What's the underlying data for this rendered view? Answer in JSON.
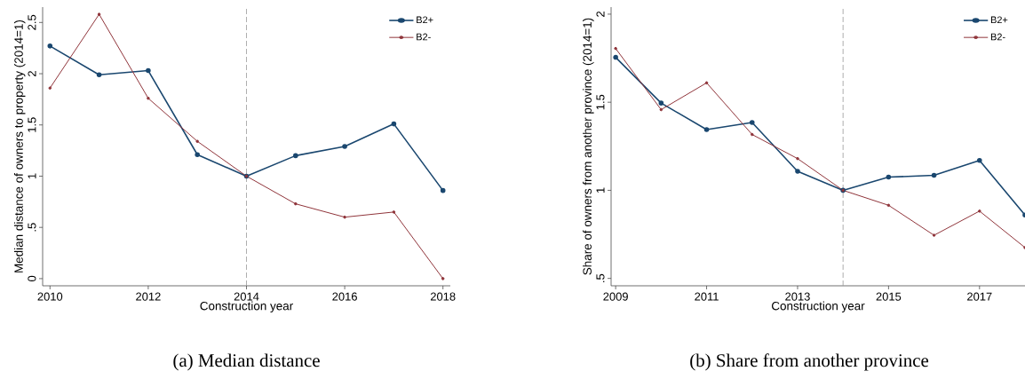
{
  "chart_data": [
    {
      "type": "line",
      "xlabel": "Construction year",
      "ylabel": "Median distance of owners to property (2014=1)",
      "x": [
        2010,
        2011,
        2012,
        2013,
        2014,
        2015,
        2016,
        2017,
        2018
      ],
      "series": [
        {
          "name": "B2+",
          "color": "#1a476f",
          "values": [
            2.27,
            1.99,
            2.03,
            1.21,
            1.0,
            1.2,
            1.29,
            1.51,
            0.86
          ]
        },
        {
          "name": "B2-",
          "color": "#90353b",
          "values": [
            1.86,
            2.58,
            1.76,
            1.34,
            1.0,
            0.73,
            0.6,
            0.65,
            0.0
          ]
        }
      ],
      "xlim": [
        2009.85,
        2018.15
      ],
      "ylim": [
        -0.07,
        2.65
      ],
      "xticks": [
        2010,
        2012,
        2014,
        2016,
        2018
      ],
      "yticks": [
        0,
        {
          "value": 0.5,
          "label": ".5"
        },
        1,
        {
          "value": 1.5,
          "label": "1.5"
        },
        2,
        {
          "value": 2.5,
          "label": "2.5"
        }
      ],
      "ref_lines": [
        {
          "axis": "x",
          "value": 2014,
          "color": "#999999",
          "line_style": "dashed"
        }
      ],
      "legend": "top right",
      "marker": "circle",
      "line_style": "solid",
      "grid": false,
      "annotations": [
        "(a) Median distance"
      ]
    },
    {
      "type": "line",
      "xlabel": "Construction year",
      "ylabel": "Share of owners from another province (2014=1)",
      "x": [
        2009,
        2010,
        2011,
        2012,
        2013,
        2014,
        2015,
        2016,
        2017,
        2018
      ],
      "series": [
        {
          "name": "B2+",
          "color": "#1a476f",
          "values": [
            1.755,
            1.495,
            1.345,
            1.385,
            1.108,
            1.0,
            1.075,
            1.085,
            1.17,
            0.86
          ]
        },
        {
          "name": "B2-",
          "color": "#90353b",
          "values": [
            1.805,
            1.458,
            1.61,
            1.317,
            1.18,
            1.0,
            0.915,
            0.745,
            0.882,
            0.675
          ]
        }
      ],
      "xlim": [
        2008.9,
        2018
      ],
      "ylim": [
        0.458,
        2.04
      ],
      "xticks": [
        2009,
        2011,
        2013,
        2015,
        2017
      ],
      "yticks": [
        {
          "value": 0.5,
          "label": ".5"
        },
        1,
        {
          "value": 1.5,
          "label": "1.5"
        },
        2
      ],
      "ref_lines": [
        {
          "axis": "x",
          "value": 2014,
          "color": "#999999",
          "line_style": "dashed"
        }
      ],
      "legend": "top right",
      "marker": "circle",
      "line_style": "solid",
      "grid": false,
      "annotations": [
        "(b) Share from another province"
      ]
    }
  ]
}
